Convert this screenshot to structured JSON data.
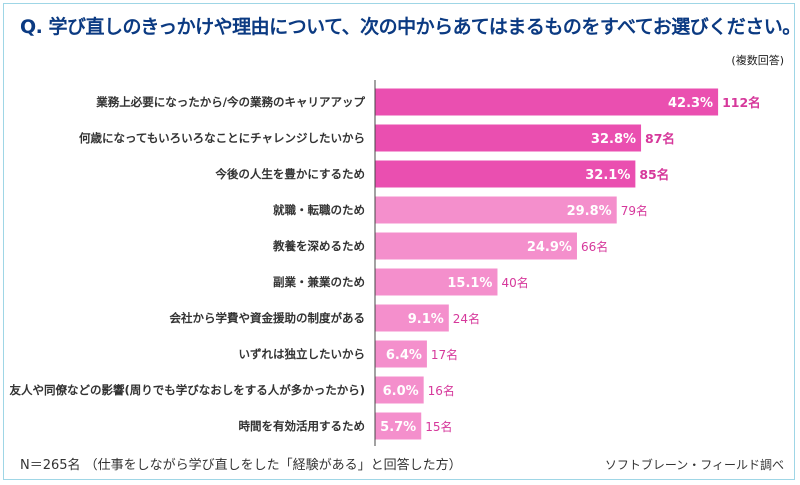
{
  "title": "Q.  学び直しのきっかけや理由について、次の中からあてはまるものをすべてお選びください。",
  "subtitle": "(複数回答)",
  "footer": {
    "note": "N＝265名 （仕事をしながら学び直しをした「経験がある」と回答した方）",
    "source": "ソフトブレーン・フィールド調べ"
  },
  "colors": {
    "title": "#0b3a82",
    "bar_dark": "#ea4fb0",
    "bar_light": "#f48fcc",
    "count_text": "#d6389b",
    "axis": "#444444"
  },
  "chart_data": {
    "type": "bar",
    "orientation": "horizontal",
    "categories": [
      "業務上必要になったから/今の業務のキャリアアップ",
      "何歳になってもいろいろなことにチャレンジしたいから",
      "今後の人生を豊かにするため",
      "就職・転職のため",
      "教養を深めるため",
      "副業・兼業のため",
      "会社から学費や資金援助の制度がある",
      "いずれは独立したいから",
      "友人や同僚などの影響(周りでも学びなおしをする人が多かったから)",
      "時間を有効活用するため"
    ],
    "values": [
      42.3,
      32.8,
      32.1,
      29.8,
      24.9,
      15.1,
      9.1,
      6.4,
      6.0,
      5.7
    ],
    "value_labels": [
      "42.3%",
      "32.8%",
      "32.1%",
      "29.8%",
      "24.9%",
      "15.1%",
      "9.1%",
      "6.4%",
      "6.0%",
      "5.7%"
    ],
    "count_labels": [
      "112名",
      "87名",
      "85名",
      "79名",
      "66名",
      "40名",
      "24名",
      "17名",
      "16名",
      "15名"
    ],
    "highlight_count": 3,
    "xlim": [
      0,
      45
    ]
  }
}
